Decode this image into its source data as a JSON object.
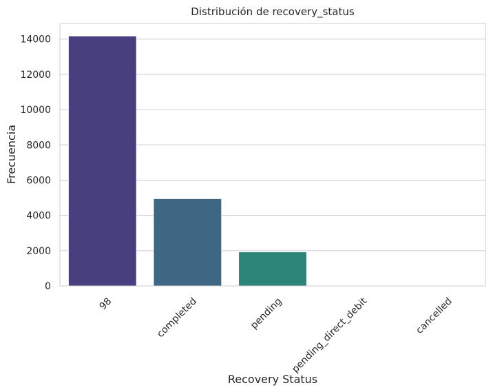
{
  "chart_data": {
    "type": "bar",
    "title": "Distribución de recovery_status",
    "xlabel": "Recovery Status",
    "ylabel": "Frecuencia",
    "categories": [
      "98",
      "completed",
      "pending",
      "pending_direct_debit",
      "cancelled"
    ],
    "values": [
      14180,
      4950,
      1930,
      4,
      2
    ],
    "ylim": [
      0,
      14889
    ],
    "yticks": [
      0,
      2000,
      4000,
      6000,
      8000,
      10000,
      12000,
      14000
    ],
    "ytick_labels": [
      "0",
      "2000",
      "4000",
      "6000",
      "8000",
      "10000",
      "12000",
      "14000"
    ],
    "colors": [
      "#48407e",
      "#3f6682",
      "#2d8479",
      "#4dad6c",
      "#a3c846"
    ],
    "grid": "y",
    "legend": "none"
  }
}
